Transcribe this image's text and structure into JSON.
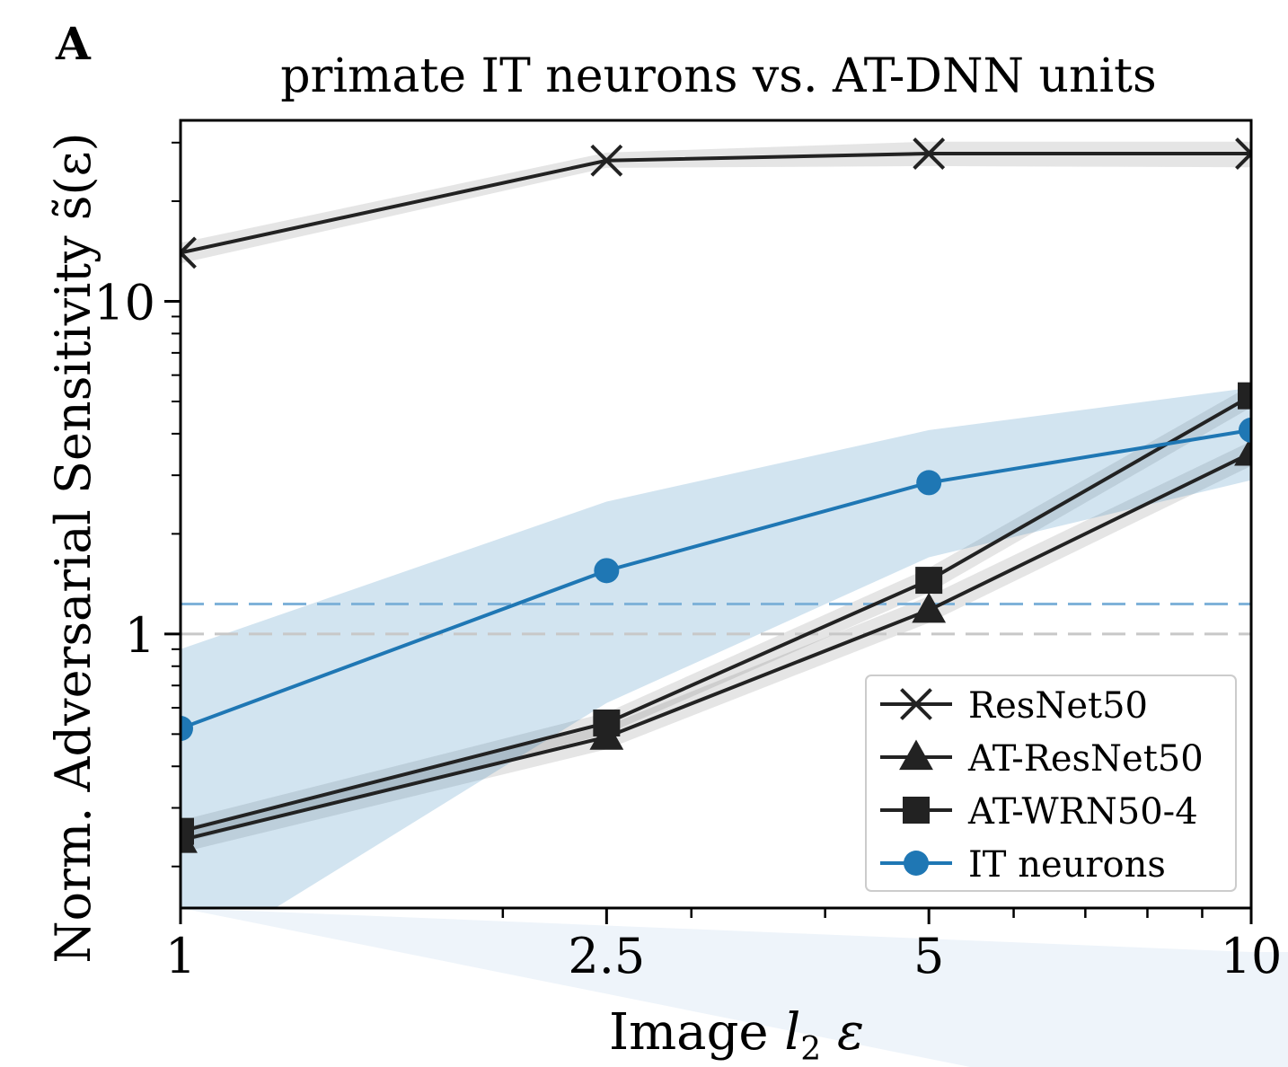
{
  "panel_label": "A",
  "chart_data": {
    "type": "line",
    "title": "primate IT neurons vs. AT-DNN units",
    "xlabel": "Image l₂ ε",
    "ylabel": "Norm. Adversarial Sensitivity  s̃(ε)",
    "xscale": "log",
    "yscale": "log",
    "xlim": [
      1,
      10
    ],
    "ylim": [
      0.15,
      35
    ],
    "xticks": [
      1,
      2.5,
      5,
      10
    ],
    "xtick_labels": [
      "1",
      "2.5",
      "5",
      "10"
    ],
    "yticks": [
      1,
      10
    ],
    "ytick_labels": [
      "1",
      "10"
    ],
    "grid": false,
    "legend_position": "bottom-right",
    "x": [
      1,
      2.5,
      5,
      10
    ],
    "series": [
      {
        "name": "ResNet50",
        "marker": "x",
        "color": "#222222",
        "values": [
          14.0,
          26.5,
          27.8,
          27.8
        ],
        "lower": [
          13.0,
          25.2,
          25.5,
          25.3
        ],
        "upper": [
          15.0,
          28.0,
          30.2,
          30.2
        ]
      },
      {
        "name": "AT-ResNet50",
        "marker": "triangle",
        "color": "#222222",
        "values": [
          0.24,
          0.49,
          1.18,
          3.5
        ],
        "lower": [
          0.22,
          0.45,
          1.08,
          3.2
        ],
        "upper": [
          0.26,
          0.53,
          1.3,
          3.8
        ]
      },
      {
        "name": "AT-WRN50-4",
        "marker": "square",
        "color": "#222222",
        "values": [
          0.255,
          0.54,
          1.45,
          5.2
        ],
        "lower": [
          0.235,
          0.5,
          1.33,
          4.8
        ],
        "upper": [
          0.275,
          0.58,
          1.58,
          5.6
        ]
      },
      {
        "name": "IT neurons",
        "marker": "circle",
        "color": "#1f77b4",
        "values": [
          0.52,
          1.55,
          2.85,
          4.1
        ],
        "lower": [
          0.1,
          0.62,
          1.7,
          2.9
        ],
        "upper": [
          0.9,
          2.5,
          4.1,
          5.5
        ]
      }
    ],
    "reference_lines": [
      {
        "y": 1.23,
        "color": "#7fb2d9",
        "style": "dashed"
      },
      {
        "y": 1.0,
        "color": "#c8c8c8",
        "style": "dashed"
      }
    ]
  }
}
